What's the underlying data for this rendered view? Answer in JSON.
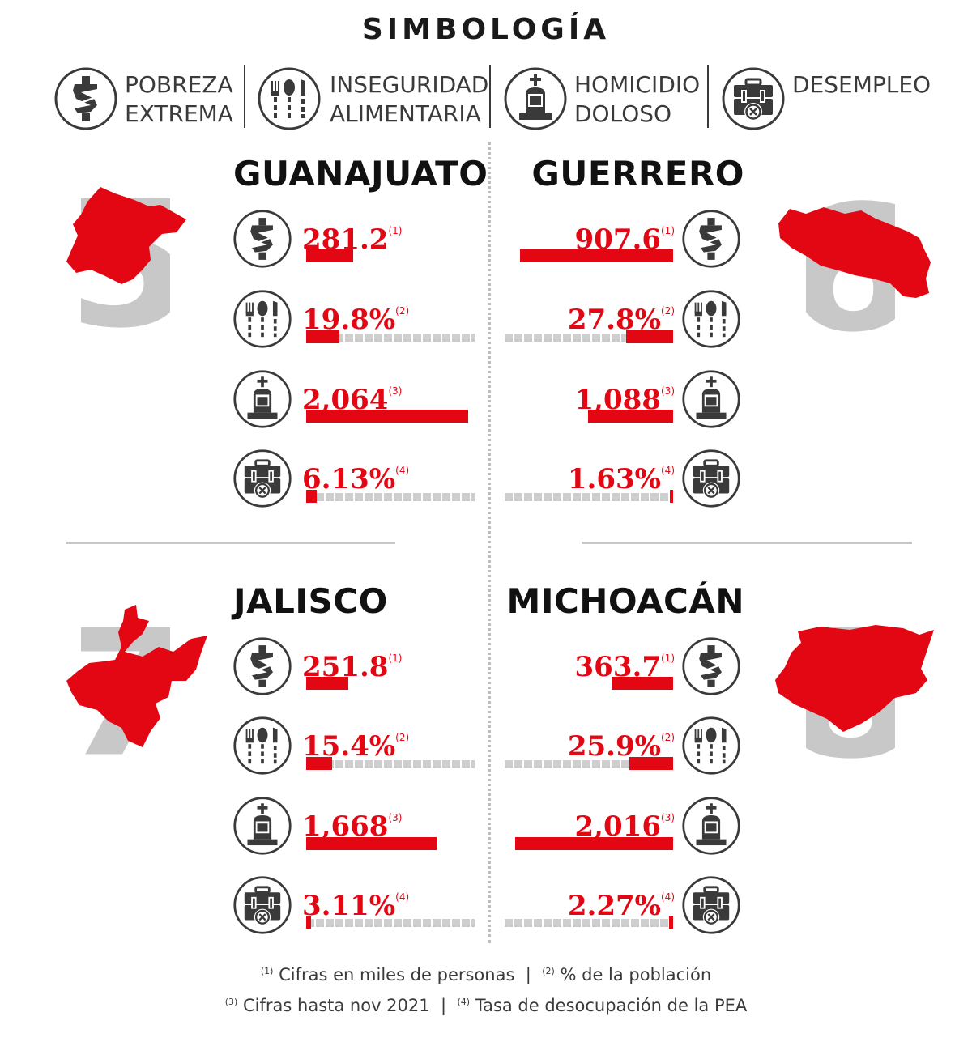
{
  "legend": {
    "title": "SIMBOLOGÍA",
    "items": [
      {
        "icon": "money-icon",
        "line1": "POBREZA",
        "line2": "EXTREMA"
      },
      {
        "icon": "cutlery-icon",
        "line1": "INSEGURIDAD",
        "line2": "ALIMENTARIA"
      },
      {
        "icon": "tombstone-icon",
        "line1": "HOMICIDIO",
        "line2": "DOLOSO"
      },
      {
        "icon": "briefcase-x-icon",
        "line1": "DESEMPLEO",
        "line2": ""
      }
    ]
  },
  "colors": {
    "accent": "#e30613",
    "icon": "#3a3a3a",
    "track": "#cfcfcf",
    "rank_number": "#c8c8c8"
  },
  "states": [
    {
      "name": "GUANAJUATO",
      "rank": "5"
    },
    {
      "name": "GUERRERO",
      "rank": "6"
    },
    {
      "name": "JALISCO",
      "rank": "7"
    },
    {
      "name": "MICHOACÁN",
      "rank": "8"
    }
  ],
  "chart_data": {
    "type": "bar",
    "categories": [
      "GUANAJUATO",
      "GUERRERO",
      "JALISCO",
      "MICHOACÁN"
    ],
    "series": [
      {
        "name": "POBREZA EXTREMA",
        "note": "1",
        "values": [
          281.2,
          907.6,
          251.8,
          363.7
        ],
        "labels": [
          "281.2",
          "907.6",
          "251.8",
          "363.7"
        ]
      },
      {
        "name": "INSEGURIDAD ALIMENTARIA",
        "note": "2",
        "values": [
          19.8,
          27.8,
          15.4,
          25.9
        ],
        "labels": [
          "19.8%",
          "27.8%",
          "15.4%",
          "25.9%"
        ]
      },
      {
        "name": "HOMICIDIO DOLOSO",
        "note": "3",
        "values": [
          2064,
          1088,
          1668,
          2016
        ],
        "labels": [
          "2,064",
          "1,088",
          "1,668",
          "2,016"
        ]
      },
      {
        "name": "DESEMPLEO",
        "note": "4",
        "values": [
          6.13,
          1.63,
          3.11,
          2.27
        ],
        "labels": [
          "6.13%",
          "1.63%",
          "3.11%",
          "2.27%"
        ]
      }
    ]
  },
  "footnotes": {
    "n1_mark": "1",
    "n1": "Cifras en miles de personas",
    "n2_mark": "2",
    "n2": "% de la población",
    "n3_mark": "3",
    "n3": "Cifras hasta nov 2021",
    "n4_mark": "4",
    "n4": "Tasa de desocupación de la PEA",
    "sep": "|"
  }
}
